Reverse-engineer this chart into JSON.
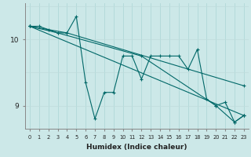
{
  "xlabel": "Humidex (Indice chaleur)",
  "ylabel": "",
  "background_color": "#cce8e8",
  "line_color": "#006868",
  "grid_color_v": "#aad4d4",
  "grid_color_h": "#c0dcdc",
  "xlim": [
    -0.5,
    23.5
  ],
  "ylim": [
    8.65,
    10.55
  ],
  "yticks": [
    9,
    10
  ],
  "xticks": [
    0,
    1,
    2,
    3,
    4,
    5,
    6,
    7,
    8,
    9,
    10,
    11,
    12,
    13,
    14,
    15,
    16,
    17,
    18,
    19,
    20,
    21,
    22,
    23
  ],
  "lines": [
    {
      "x": [
        0,
        1,
        2,
        3,
        4,
        5,
        6,
        7,
        8,
        9,
        10,
        11,
        12,
        13,
        14,
        15,
        16,
        17,
        18,
        19,
        20,
        21,
        22,
        23
      ],
      "y": [
        10.2,
        10.2,
        10.15,
        10.1,
        10.1,
        10.35,
        9.35,
        8.8,
        9.2,
        9.2,
        9.75,
        9.75,
        9.4,
        9.75,
        9.75,
        9.75,
        9.75,
        9.55,
        9.85,
        9.1,
        9.0,
        9.05,
        8.75,
        8.85
      ]
    },
    {
      "x": [
        0,
        23
      ],
      "y": [
        10.2,
        8.85
      ]
    },
    {
      "x": [
        0,
        4,
        23
      ],
      "y": [
        10.2,
        10.1,
        9.3
      ]
    },
    {
      "x": [
        0,
        3,
        12,
        20,
        22,
        23
      ],
      "y": [
        10.2,
        10.1,
        9.75,
        9.0,
        8.75,
        8.85
      ]
    }
  ]
}
